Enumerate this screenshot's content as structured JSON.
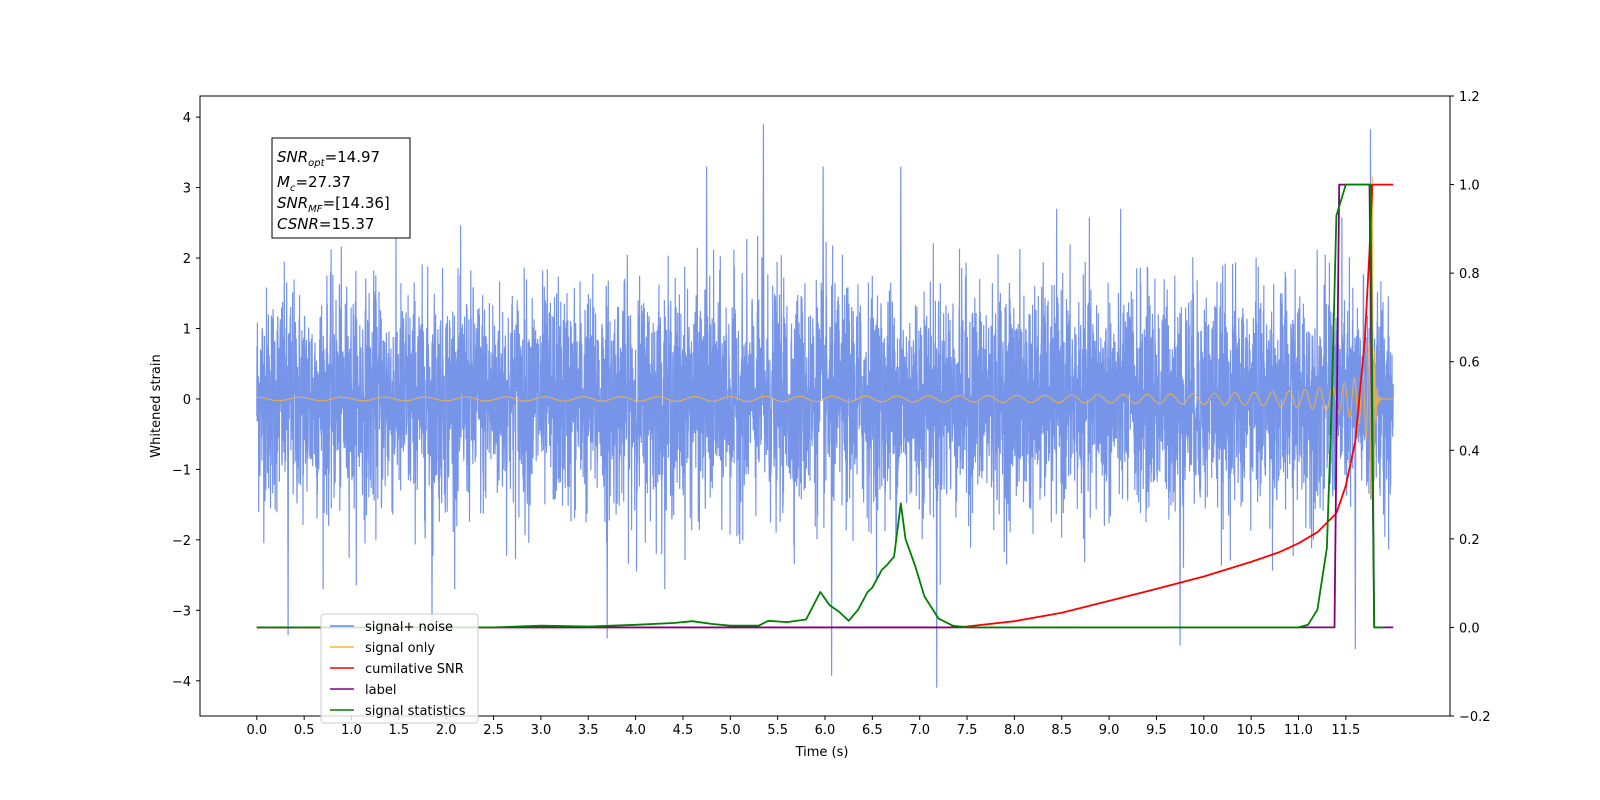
{
  "chart_data": {
    "type": "line",
    "xlabel": "Time (s)",
    "ylabel": "Whitened strain",
    "xlim": [
      -0.6,
      12.6
    ],
    "ylim": [
      -4.5,
      4.3
    ],
    "y2lim": [
      -0.2,
      1.2
    ],
    "x_ticks": [
      "0.0",
      "0.5",
      "1.0",
      "1.5",
      "2.0",
      "2.5",
      "3.0",
      "3.5",
      "4.0",
      "4.5",
      "5.0",
      "5.5",
      "6.0",
      "6.5",
      "7.0",
      "7.5",
      "8.0",
      "8.5",
      "9.0",
      "9.5",
      "10.0",
      "10.5",
      "11.0",
      "11.5"
    ],
    "y_ticks": [
      "4",
      "3",
      "2",
      "1",
      "0",
      "−1",
      "−2",
      "−3",
      "−4"
    ],
    "y2_ticks": [
      "1.2",
      "1.0",
      "0.8",
      "0.6",
      "0.4",
      "0.2",
      "0.0",
      "−0.2"
    ],
    "grid": false,
    "legend_position": "lower-left",
    "annotation": {
      "lines": [
        {
          "sym": "SNR",
          "sub": "opt",
          "rest": "=14.97"
        },
        {
          "sym": "M",
          "sub": "c",
          "rest": "=27.37"
        },
        {
          "sym": "SNR",
          "sub": "MF",
          "rest": "=[14.36]"
        },
        {
          "sym": "CSNR",
          "sub": "",
          "rest": "=15.37"
        }
      ]
    },
    "series": [
      {
        "name": "signal+ noise",
        "color": "#6b8ce6",
        "axis": "left",
        "kind": "noise",
        "x_range": [
          0.0,
          12.0
        ],
        "envelope": 1.3,
        "peaks": [
          [
            0.33,
            -3.35
          ],
          [
            5.35,
            3.9
          ],
          [
            5.98,
            3.3
          ],
          [
            6.07,
            -3.93
          ],
          [
            7.18,
            -4.1
          ],
          [
            9.75,
            -3.5
          ],
          [
            11.76,
            3.83
          ],
          [
            11.6,
            -3.55
          ],
          [
            3.7,
            -3.4
          ],
          [
            4.75,
            3.3
          ],
          [
            6.8,
            3.3
          ],
          [
            1.85,
            -3.25
          ]
        ]
      },
      {
        "name": "signal only",
        "color": "#f5b041",
        "axis": "left",
        "kind": "chirp",
        "x_range": [
          0.0,
          12.0
        ],
        "merger_time": 11.78,
        "peak_amplitude": 3.2
      },
      {
        "name": "cumilative SNR",
        "color": "#ff0000",
        "axis": "right",
        "x": [
          0.0,
          7.3,
          7.5,
          8.0,
          8.5,
          9.0,
          9.5,
          10.0,
          10.5,
          10.8,
          11.0,
          11.2,
          11.4,
          11.5,
          11.6,
          11.7,
          11.75,
          11.78,
          12.0
        ],
        "y": [
          0.0,
          0.0,
          0.002,
          0.014,
          0.033,
          0.06,
          0.087,
          0.115,
          0.148,
          0.17,
          0.19,
          0.215,
          0.258,
          0.32,
          0.42,
          0.65,
          0.85,
          1.0,
          1.0
        ]
      },
      {
        "name": "label",
        "color": "#800080",
        "axis": "right",
        "x": [
          0.0,
          11.38,
          11.43,
          11.75,
          11.8,
          12.0
        ],
        "y": [
          0.0,
          0.0,
          1.0,
          1.0,
          0.0,
          0.0
        ]
      },
      {
        "name": "signal statistics",
        "color": "#008000",
        "axis": "right",
        "x": [
          0.0,
          2.5,
          3.0,
          3.5,
          4.0,
          4.4,
          4.6,
          4.8,
          5.0,
          5.3,
          5.4,
          5.6,
          5.8,
          5.95,
          6.05,
          6.15,
          6.25,
          6.35,
          6.45,
          6.5,
          6.6,
          6.65,
          6.73,
          6.8,
          6.85,
          6.95,
          7.05,
          7.2,
          7.35,
          7.5,
          11.0,
          11.1,
          11.2,
          11.3,
          11.35,
          11.4,
          11.5,
          11.6,
          11.76,
          11.8,
          11.9
        ],
        "y": [
          0.0,
          0.0,
          0.004,
          0.002,
          0.006,
          0.01,
          0.014,
          0.008,
          0.004,
          0.004,
          0.015,
          0.012,
          0.018,
          0.08,
          0.05,
          0.035,
          0.015,
          0.04,
          0.08,
          0.09,
          0.13,
          0.14,
          0.16,
          0.28,
          0.2,
          0.14,
          0.07,
          0.02,
          0.004,
          0.0,
          0.0,
          0.006,
          0.04,
          0.18,
          0.5,
          0.93,
          1.0,
          1.0,
          1.0,
          0.0,
          0.0
        ]
      }
    ]
  }
}
